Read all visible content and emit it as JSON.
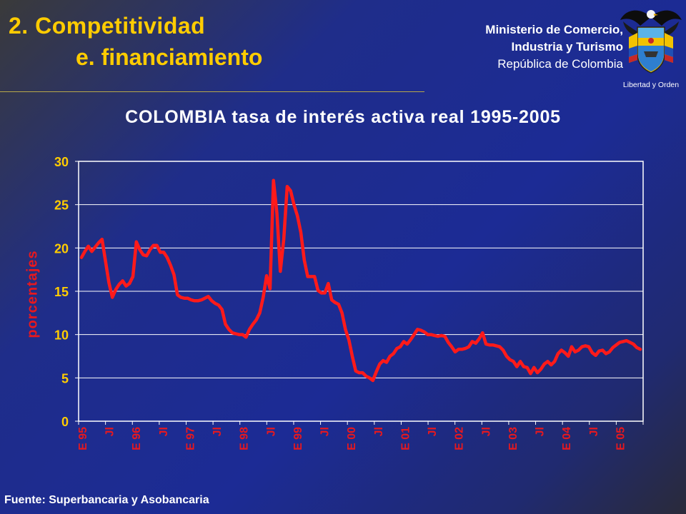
{
  "header": {
    "title_line1": "2.  Competitividad",
    "title_line2": "e. financiamiento",
    "ministry_line1": "Ministerio de Comercio,",
    "ministry_line2": "Industria y Turismo",
    "ministry_line3": "República de Colombia",
    "emblem_motto": "Libertad y Orden"
  },
  "footer": {
    "source": "Fuente: Superbancaria y Asobancaria"
  },
  "chart_data": {
    "type": "line",
    "title": "COLOMBIA tasa de interés activa real 1995-2005",
    "ylabel": "porcentajes",
    "xlabel": "",
    "ylim": [
      0,
      30
    ],
    "yticks": [
      0,
      5,
      10,
      15,
      20,
      25,
      30
    ],
    "grid": "horizontal",
    "line_color": "#ff1a1a",
    "accent_color": "#ffcc00",
    "x_tick_labels": [
      "E 95",
      "Jl",
      "E 96",
      "Jl",
      "E 97",
      "Jl",
      "E 98",
      "Jl",
      "E 99",
      "Jl",
      "E 00",
      "Jl",
      "E 01",
      "Jl",
      "E 02",
      "Jl",
      "E 03",
      "Jl",
      "E 04",
      "Jl",
      "E 05"
    ],
    "series": [
      {
        "values": [
          18.9,
          19.6,
          20.2,
          19.6,
          20.1,
          20.6,
          21.0,
          18.5,
          16.0,
          14.3,
          15.2,
          15.8,
          16.2,
          15.6,
          15.9,
          16.7,
          20.7,
          19.8,
          19.2,
          19.1,
          19.8,
          20.3,
          20.3,
          19.5,
          19.5,
          18.9,
          18.0,
          16.9,
          14.6,
          14.3,
          14.2,
          14.2,
          14.0,
          13.9,
          13.9,
          14.0,
          14.2,
          14.4,
          13.9,
          13.6,
          13.4,
          12.9,
          11.2,
          10.6,
          10.2,
          10.1,
          10.0,
          10.0,
          9.7,
          10.6,
          11.2,
          11.7,
          12.5,
          14.3,
          16.8,
          15.3,
          27.8,
          24.0,
          17.3,
          21.0,
          27.1,
          26.6,
          25.0,
          23.7,
          21.8,
          18.6,
          16.7,
          16.7,
          16.7,
          15.1,
          14.8,
          14.8,
          15.9,
          14.0,
          13.7,
          13.5,
          12.5,
          10.6,
          9.4,
          7.5,
          5.8,
          5.6,
          5.6,
          5.2,
          5.0,
          4.7,
          5.7,
          6.6,
          7.0,
          6.8,
          7.5,
          7.8,
          8.4,
          8.6,
          9.2,
          8.9,
          9.4,
          10.0,
          10.6,
          10.5,
          10.3,
          10.0,
          10.0,
          9.9,
          9.8,
          9.9,
          9.8,
          9.1,
          8.6,
          8.0,
          8.3,
          8.3,
          8.4,
          8.6,
          9.2,
          9.0,
          9.5,
          10.2,
          8.9,
          8.8,
          8.8,
          8.7,
          8.6,
          8.2,
          7.5,
          7.1,
          6.9,
          6.3,
          6.9,
          6.3,
          6.2,
          5.5,
          6.2,
          5.6,
          6.0,
          6.6,
          6.9,
          6.5,
          6.9,
          7.8,
          8.2,
          7.9,
          7.5,
          8.6,
          8.0,
          8.2,
          8.6,
          8.7,
          8.6,
          7.9,
          7.6,
          8.1,
          8.2,
          7.8,
          8.0,
          8.5,
          8.8,
          9.1,
          9.2,
          9.3,
          9.1,
          8.9,
          8.5,
          8.3
        ]
      }
    ]
  }
}
